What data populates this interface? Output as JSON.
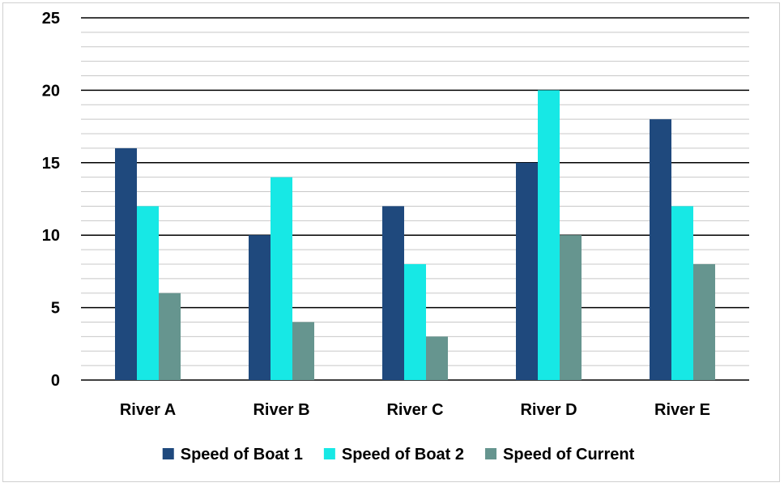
{
  "chart_data": {
    "type": "bar",
    "categories": [
      "River A",
      "River B",
      "River C",
      "River D",
      "River E"
    ],
    "series": [
      {
        "name": "Speed of Boat 1",
        "color": "#1f497d",
        "values": [
          16,
          10,
          12,
          15,
          18
        ]
      },
      {
        "name": "Speed of Boat 2",
        "color": "#17e8e5",
        "values": [
          12,
          14,
          8,
          20,
          12
        ]
      },
      {
        "name": "Speed of Current",
        "color": "#66958f",
        "values": [
          6,
          4,
          3,
          10,
          8
        ]
      }
    ],
    "ylim": [
      0,
      25
    ],
    "yticks": [
      0,
      5,
      10,
      15,
      20,
      25
    ],
    "minor_step": 1,
    "grid": true,
    "legend_position": "bottom",
    "title": "",
    "xlabel": "",
    "ylabel": ""
  }
}
